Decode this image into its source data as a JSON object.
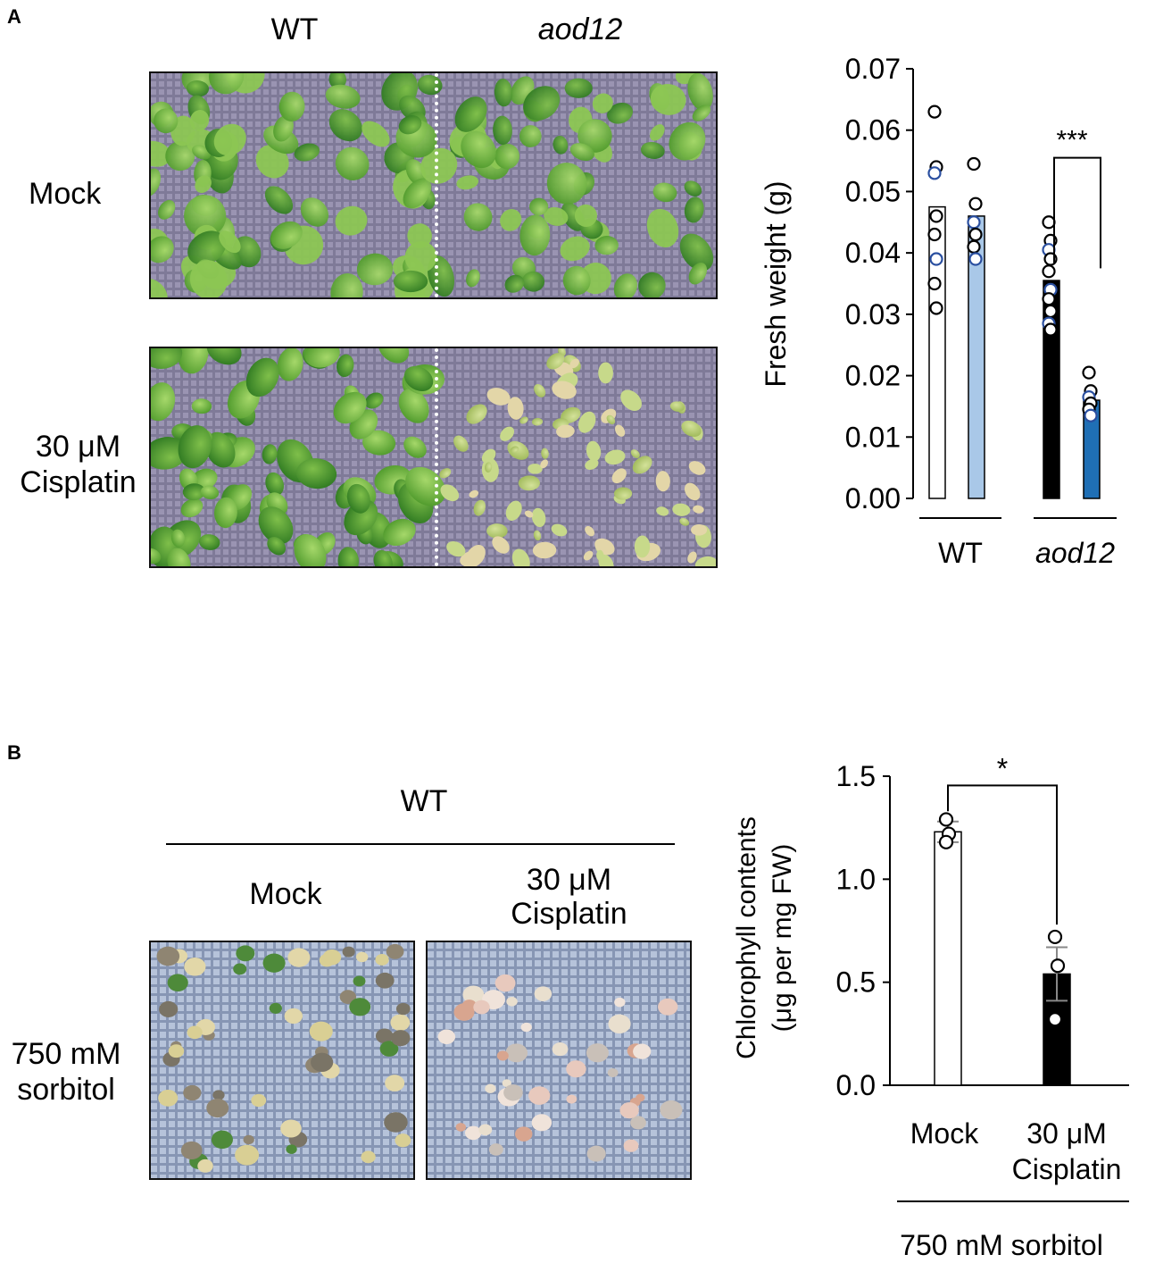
{
  "panels": {
    "a": {
      "letter": "A"
    },
    "b": {
      "letter": "B"
    }
  },
  "panel_a": {
    "col_wt": "WT",
    "col_aod12": "aod12",
    "row_mock": "Mock",
    "row_cis_line1": "30 μM",
    "row_cis_line2": "Cisplatin",
    "photo_mock": "mock-photo",
    "photo_cis": "cisplatin-photo"
  },
  "panel_b": {
    "header": "WT",
    "col_mock": "Mock",
    "col_cis_line1": "30 μM",
    "col_cis_line2": "Cisplatin",
    "row_line1": "750 mM",
    "row_line2": "sorbitol"
  },
  "colors": {
    "bar_white": "#ffffff",
    "bar_black": "#000000",
    "bar_lightblue": "#a9c8e8",
    "bar_blue": "#1f6fb5",
    "point_edge_blue": "#2a4fa0",
    "leaf_green": "#6bb23f",
    "grid_purple": "#8c86a6",
    "grid_blue": "#a9b9d3"
  },
  "chart_data": [
    {
      "type": "bar",
      "ylabel": "Fresh weight (g)",
      "ylim": [
        0,
        0.07
      ],
      "yticks": [
        "0.00",
        "0.01",
        "0.02",
        "0.03",
        "0.04",
        "0.05",
        "0.06",
        "0.07"
      ],
      "groups": [
        "WT",
        "aod12"
      ],
      "bars": [
        {
          "group": "WT",
          "value": 0.0475,
          "color": "#ffffff",
          "points": [
            0.063,
            0.054,
            0.053,
            0.046,
            0.043,
            0.039,
            0.035,
            0.031
          ]
        },
        {
          "group": "WT",
          "value": 0.046,
          "color": "#a9c8e8",
          "points": [
            0.0545,
            0.048,
            0.045,
            0.043,
            0.041,
            0.039
          ]
        },
        {
          "group": "aod12",
          "value": 0.0355,
          "color": "#000000",
          "points": [
            0.045,
            0.042,
            0.0405,
            0.039,
            0.037,
            0.034,
            0.0325,
            0.0305,
            0.0285,
            0.0275
          ]
        },
        {
          "group": "aod12",
          "value": 0.016,
          "color": "#1f6fb5",
          "points": [
            0.0205,
            0.0175,
            0.0165,
            0.0155,
            0.0145,
            0.0135
          ]
        }
      ],
      "significance": "***"
    },
    {
      "type": "bar",
      "ylabel_line1": "Chlorophyll contents",
      "ylabel_line2": "(μg per mg  FW)",
      "ylim": [
        0,
        1.5
      ],
      "yticks": [
        "0.0",
        "0.5",
        "1.0",
        "1.5"
      ],
      "categories": [
        "Mock",
        "30 μM\nCisplatin"
      ],
      "category_mock": "Mock",
      "category_cis_line1": "30 μM",
      "category_cis_line2": "Cisplatin",
      "values": [
        1.23,
        0.54
      ],
      "errors": [
        0.05,
        0.13
      ],
      "colors": [
        "#ffffff",
        "#000000"
      ],
      "points": [
        [
          1.29,
          1.22,
          1.18
        ],
        [
          0.72,
          0.58,
          0.32
        ]
      ],
      "significance": "*",
      "footer": "750 mM sorbitol"
    }
  ]
}
